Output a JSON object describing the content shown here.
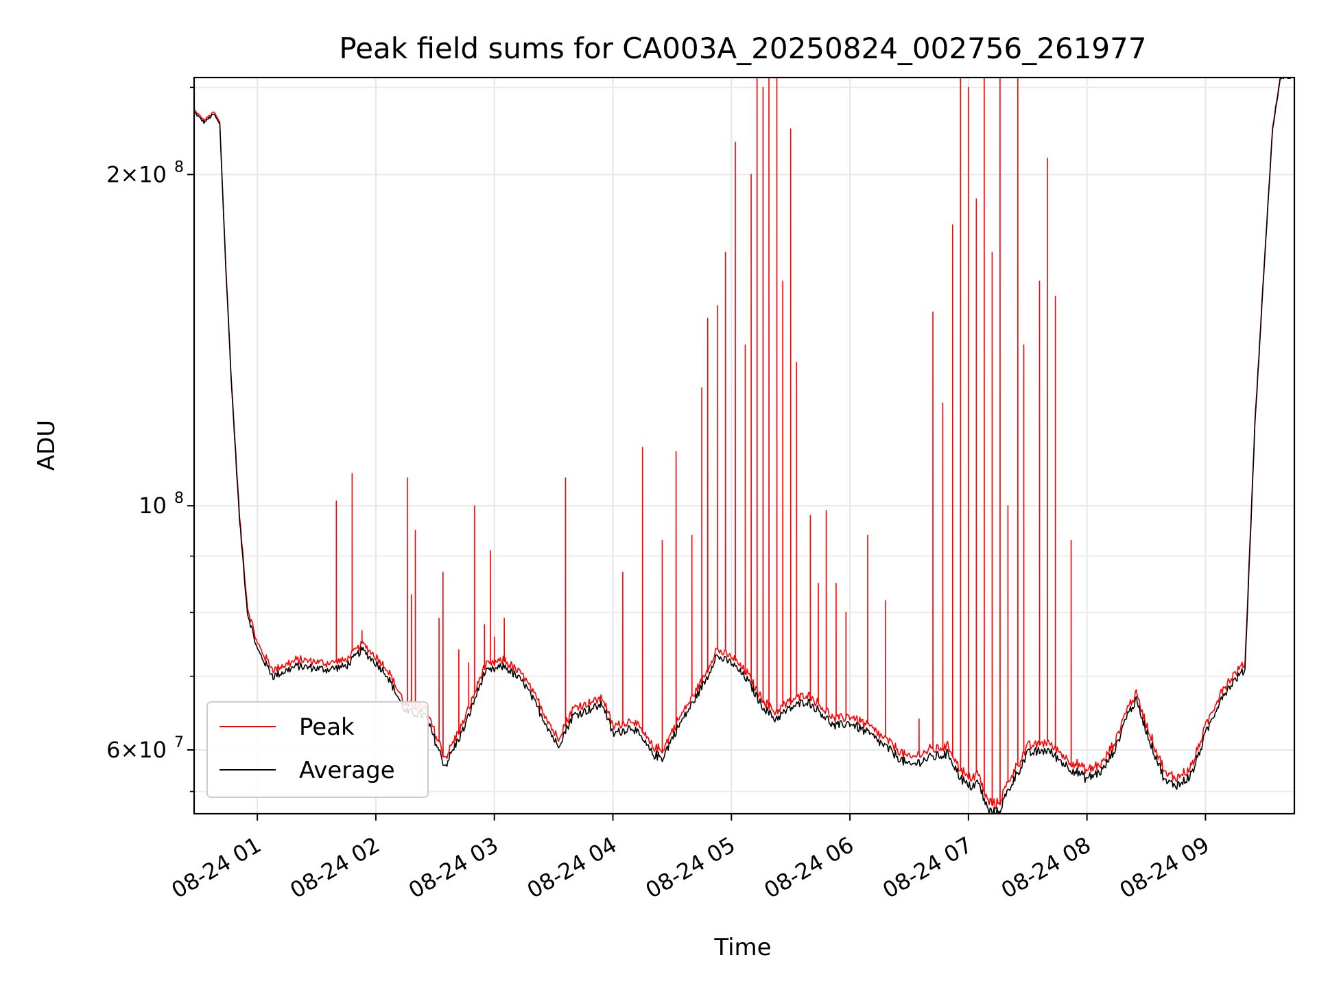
{
  "chart_data": {
    "type": "line",
    "title": "Peak field sums for CA003A_20250824_002756_261977",
    "xlabel": "Time",
    "ylabel": "ADU",
    "yscale": "log",
    "xlim": [
      "2025-08-24 00:28",
      "2025-08-24 09:45"
    ],
    "ylim": [
      52500000,
      245000000
    ],
    "grid": true,
    "legend_position": "lower-left",
    "x_ticks": [
      {
        "t": "2025-08-24 01:00",
        "label": "08-24 01"
      },
      {
        "t": "2025-08-24 02:00",
        "label": "08-24 02"
      },
      {
        "t": "2025-08-24 03:00",
        "label": "08-24 03"
      },
      {
        "t": "2025-08-24 04:00",
        "label": "08-24 04"
      },
      {
        "t": "2025-08-24 05:00",
        "label": "08-24 05"
      },
      {
        "t": "2025-08-24 06:00",
        "label": "08-24 06"
      },
      {
        "t": "2025-08-24 07:00",
        "label": "08-24 07"
      },
      {
        "t": "2025-08-24 08:00",
        "label": "08-24 08"
      },
      {
        "t": "2025-08-24 09:00",
        "label": "08-24 09"
      }
    ],
    "y_ticks": [
      {
        "value": 60000000,
        "label_base": "6×10",
        "label_exp": "7"
      },
      {
        "value": 100000000,
        "label_base": "10",
        "label_exp": "8"
      },
      {
        "value": 200000000,
        "label_base": "2×10",
        "label_exp": "8"
      }
    ],
    "y_minor_ticks": [
      70000000,
      80000000,
      90000000
    ],
    "series": [
      {
        "name": "Average",
        "color": "#000000",
        "points": [
          [
            "2025-08-24 00:28",
            228000000
          ],
          [
            "2025-08-24 00:33",
            223000000
          ],
          [
            "2025-08-24 00:38",
            227000000
          ],
          [
            "2025-08-24 00:41",
            222000000
          ],
          [
            "2025-08-24 00:44",
            165000000
          ],
          [
            "2025-08-24 00:47",
            128000000
          ],
          [
            "2025-08-24 00:51",
            97000000
          ],
          [
            "2025-08-24 00:55",
            80000000
          ],
          [
            "2025-08-24 01:00",
            74000000
          ],
          [
            "2025-08-24 01:08",
            70000000
          ],
          [
            "2025-08-24 01:20",
            71500000
          ],
          [
            "2025-08-24 01:35",
            71000000
          ],
          [
            "2025-08-24 01:45",
            71500000
          ],
          [
            "2025-08-24 01:53",
            74000000
          ],
          [
            "2025-08-24 02:05",
            70500000
          ],
          [
            "2025-08-24 02:15",
            65000000
          ],
          [
            "2025-08-24 02:25",
            64500000
          ],
          [
            "2025-08-24 02:35",
            58000000
          ],
          [
            "2025-08-24 02:45",
            63000000
          ],
          [
            "2025-08-24 02:55",
            70500000
          ],
          [
            "2025-08-24 03:05",
            71500000
          ],
          [
            "2025-08-24 03:15",
            69000000
          ],
          [
            "2025-08-24 03:25",
            64000000
          ],
          [
            "2025-08-24 03:32",
            60500000
          ],
          [
            "2025-08-24 03:40",
            64500000
          ],
          [
            "2025-08-24 03:55",
            66000000
          ],
          [
            "2025-08-24 04:00",
            62000000
          ],
          [
            "2025-08-24 04:10",
            63000000
          ],
          [
            "2025-08-24 04:20",
            59500000
          ],
          [
            "2025-08-24 04:25",
            59000000
          ],
          [
            "2025-08-24 04:32",
            62500000
          ],
          [
            "2025-08-24 04:40",
            66000000
          ],
          [
            "2025-08-24 04:48",
            70000000
          ],
          [
            "2025-08-24 04:52",
            73000000
          ],
          [
            "2025-08-24 05:00",
            72000000
          ],
          [
            "2025-08-24 05:08",
            69500000
          ],
          [
            "2025-08-24 05:15",
            66000000
          ],
          [
            "2025-08-24 05:22",
            64000000
          ],
          [
            "2025-08-24 05:30",
            65500000
          ],
          [
            "2025-08-24 05:38",
            66500000
          ],
          [
            "2025-08-24 05:45",
            65000000
          ],
          [
            "2025-08-24 05:52",
            63000000
          ],
          [
            "2025-08-24 06:00",
            63500000
          ],
          [
            "2025-08-24 06:10",
            62000000
          ],
          [
            "2025-08-24 06:20",
            60000000
          ],
          [
            "2025-08-24 06:30",
            58000000
          ],
          [
            "2025-08-24 06:40",
            59000000
          ],
          [
            "2025-08-24 06:50",
            59500000
          ],
          [
            "2025-08-24 06:55",
            57000000
          ],
          [
            "2025-08-24 07:00",
            55500000
          ],
          [
            "2025-08-24 07:05",
            56000000
          ],
          [
            "2025-08-24 07:10",
            52800000
          ],
          [
            "2025-08-24 07:15",
            52600000
          ],
          [
            "2025-08-24 07:22",
            56000000
          ],
          [
            "2025-08-24 07:30",
            59500000
          ],
          [
            "2025-08-24 07:40",
            60000000
          ],
          [
            "2025-08-24 07:50",
            58000000
          ],
          [
            "2025-08-24 08:00",
            56500000
          ],
          [
            "2025-08-24 08:08",
            57500000
          ],
          [
            "2025-08-24 08:15",
            60500000
          ],
          [
            "2025-08-24 08:20",
            64500000
          ],
          [
            "2025-08-24 08:25",
            66500000
          ],
          [
            "2025-08-24 08:32",
            61000000
          ],
          [
            "2025-08-24 08:40",
            56000000
          ],
          [
            "2025-08-24 08:47",
            55800000
          ],
          [
            "2025-08-24 08:53",
            57000000
          ],
          [
            "2025-08-24 09:00",
            62000000
          ],
          [
            "2025-08-24 09:08",
            67000000
          ],
          [
            "2025-08-24 09:15",
            69500000
          ],
          [
            "2025-08-24 09:20",
            71000000
          ],
          [
            "2025-08-24 09:25",
            118000000
          ],
          [
            "2025-08-24 09:30",
            168000000
          ],
          [
            "2025-08-24 09:34",
            220000000
          ],
          [
            "2025-08-24 09:38",
            245000000
          ],
          [
            "2025-08-24 09:45",
            245000000
          ]
        ]
      },
      {
        "name": "Peak",
        "color": "#ff0000",
        "offset": 800000,
        "spikes": [
          [
            "2025-08-24 01:40",
            101000000
          ],
          [
            "2025-08-24 01:48",
            107000000
          ],
          [
            "2025-08-24 01:53",
            77000000
          ],
          [
            "2025-08-24 02:16",
            106000000
          ],
          [
            "2025-08-24 02:18",
            83000000
          ],
          [
            "2025-08-24 02:20",
            95000000
          ],
          [
            "2025-08-24 02:32",
            79000000
          ],
          [
            "2025-08-24 02:34",
            87000000
          ],
          [
            "2025-08-24 02:42",
            74000000
          ],
          [
            "2025-08-24 02:47",
            72000000
          ],
          [
            "2025-08-24 02:50",
            100000000
          ],
          [
            "2025-08-24 02:55",
            78000000
          ],
          [
            "2025-08-24 02:58",
            91000000
          ],
          [
            "2025-08-24 03:00",
            76000000
          ],
          [
            "2025-08-24 03:05",
            79000000
          ],
          [
            "2025-08-24 03:36",
            106000000
          ],
          [
            "2025-08-24 04:05",
            87000000
          ],
          [
            "2025-08-24 04:15",
            113000000
          ],
          [
            "2025-08-24 04:25",
            93000000
          ],
          [
            "2025-08-24 04:32",
            112000000
          ],
          [
            "2025-08-24 04:40",
            94000000
          ],
          [
            "2025-08-24 04:45",
            128000000
          ],
          [
            "2025-08-24 04:48",
            148000000
          ],
          [
            "2025-08-24 04:53",
            152000000
          ],
          [
            "2025-08-24 04:57",
            170000000
          ],
          [
            "2025-08-24 05:02",
            214000000
          ],
          [
            "2025-08-24 05:07",
            140000000
          ],
          [
            "2025-08-24 05:10",
            200000000
          ],
          [
            "2025-08-24 05:13",
            245000000
          ],
          [
            "2025-08-24 05:16",
            240000000
          ],
          [
            "2025-08-24 05:19",
            245000000
          ],
          [
            "2025-08-24 05:23",
            245000000
          ],
          [
            "2025-08-24 05:26",
            160000000
          ],
          [
            "2025-08-24 05:30",
            220000000
          ],
          [
            "2025-08-24 05:33",
            135000000
          ],
          [
            "2025-08-24 05:40",
            98000000
          ],
          [
            "2025-08-24 05:44",
            85000000
          ],
          [
            "2025-08-24 05:48",
            99000000
          ],
          [
            "2025-08-24 05:53",
            85000000
          ],
          [
            "2025-08-24 05:58",
            80000000
          ],
          [
            "2025-08-24 06:09",
            94000000
          ],
          [
            "2025-08-24 06:18",
            82000000
          ],
          [
            "2025-08-24 06:35",
            64000000
          ],
          [
            "2025-08-24 06:42",
            150000000
          ],
          [
            "2025-08-24 06:47",
            124000000
          ],
          [
            "2025-08-24 06:52",
            180000000
          ],
          [
            "2025-08-24 06:56",
            245000000
          ],
          [
            "2025-08-24 07:00",
            240000000
          ],
          [
            "2025-08-24 07:04",
            190000000
          ],
          [
            "2025-08-24 07:08",
            245000000
          ],
          [
            "2025-08-24 07:12",
            170000000
          ],
          [
            "2025-08-24 07:16",
            245000000
          ],
          [
            "2025-08-24 07:20",
            100000000
          ],
          [
            "2025-08-24 07:25",
            245000000
          ],
          [
            "2025-08-24 07:28",
            140000000
          ],
          [
            "2025-08-24 07:36",
            160000000
          ],
          [
            "2025-08-24 07:40",
            207000000
          ],
          [
            "2025-08-24 07:44",
            155000000
          ],
          [
            "2025-08-24 07:52",
            93000000
          ]
        ]
      }
    ]
  }
}
